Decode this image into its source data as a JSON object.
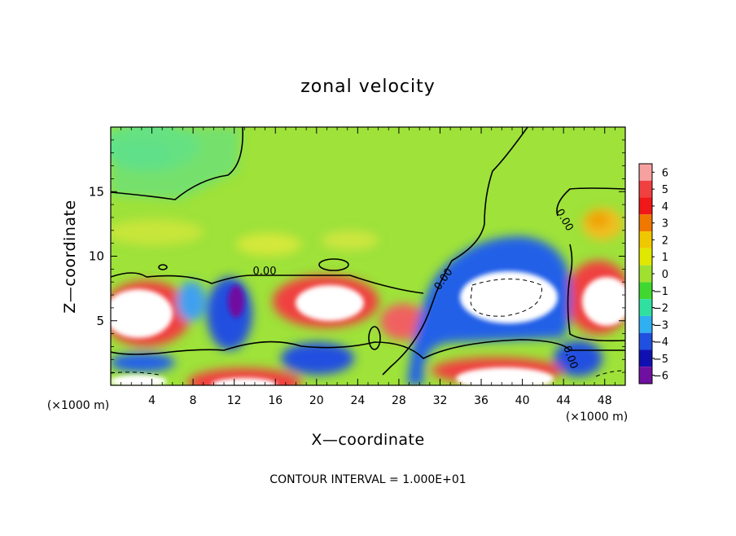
{
  "chart_data": {
    "type": "heatmap",
    "title": "zonal velocity",
    "xlabel": "X—coordinate",
    "ylabel": "Z—coordinate",
    "x_unit": "(×1000 m)",
    "x_unit_right": "(×1000 m)",
    "xlim": [
      0,
      50
    ],
    "ylim": [
      0,
      20
    ],
    "x_ticks": [
      "4",
      "8",
      "12",
      "16",
      "20",
      "24",
      "28",
      "32",
      "36",
      "40",
      "44",
      "48"
    ],
    "y_ticks": [
      "5",
      "10",
      "15"
    ],
    "footer": "CONTOUR INTERVAL = 1.000E+01",
    "contour_labels": [
      "0.00",
      "0.00",
      "0.00",
      "0.00"
    ],
    "colorbar": {
      "ticks": [
        "6",
        "5",
        "4",
        "3",
        "2",
        "1",
        "0",
        "−1",
        "−2",
        "−3",
        "−4",
        "−5",
        "−6"
      ],
      "levels": [
        6,
        5,
        4,
        3,
        2,
        1,
        0,
        -1,
        -2,
        -3,
        -4,
        -5,
        -6
      ],
      "colors": [
        "#f7a0a0",
        "#f04040",
        "#f01818",
        "#f07800",
        "#f0c800",
        "#e0e800",
        "#a0e030",
        "#40d830",
        "#30e0a0",
        "#30b0f0",
        "#2050e0",
        "#1010b0",
        "#7010a0"
      ]
    }
  }
}
